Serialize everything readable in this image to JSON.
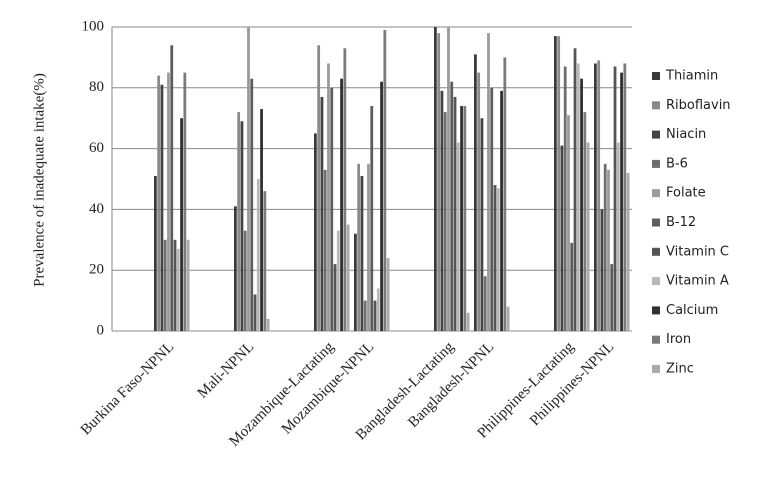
{
  "chart_data": {
    "type": "bar",
    "y_label": "Prevalence of inadequate intake(%)",
    "categories": [
      null,
      "Burkina Faso-NPNL",
      null,
      "Mali-NPNL",
      null,
      "Mozambique-Lactating",
      "Mozambique-NPNL",
      null,
      "Bangladesh-Lactating",
      "Bangladesh-NPNL",
      null,
      "Philippines-Lactating",
      "Philippines-NPNL"
    ],
    "series": [
      {
        "name": "Thiamin",
        "color": "#3a3a3a",
        "values": [
          null,
          51,
          null,
          41,
          null,
          65,
          32,
          null,
          100,
          91,
          null,
          97,
          88
        ]
      },
      {
        "name": "Riboflavin",
        "color": "#8a8a8a",
        "values": [
          null,
          84,
          null,
          72,
          null,
          94,
          55,
          null,
          98,
          85,
          null,
          97,
          89
        ]
      },
      {
        "name": "Niacin",
        "color": "#444444",
        "values": [
          null,
          81,
          null,
          69,
          null,
          77,
          51,
          null,
          79,
          70,
          null,
          61,
          40
        ]
      },
      {
        "name": "B-6",
        "color": "#6e6e6e",
        "values": [
          null,
          30,
          null,
          33,
          null,
          53,
          10,
          null,
          72,
          18,
          null,
          87,
          55
        ]
      },
      {
        "name": "Folate",
        "color": "#9a9a9a",
        "values": [
          null,
          85,
          null,
          100,
          null,
          88,
          55,
          null,
          100,
          98,
          null,
          71,
          53
        ]
      },
      {
        "name": "B-12",
        "color": "#5c5c5c",
        "values": [
          null,
          94,
          null,
          83,
          null,
          80,
          74,
          null,
          82,
          80,
          null,
          29,
          22
        ]
      },
      {
        "name": "Vitamin C",
        "color": "#555555",
        "values": [
          null,
          30,
          null,
          12,
          null,
          22,
          10,
          null,
          77,
          48,
          null,
          93,
          87
        ]
      },
      {
        "name": "Vitamin A",
        "color": "#b8b8b8",
        "values": [
          null,
          27,
          null,
          50,
          null,
          33,
          14,
          null,
          62,
          47,
          null,
          88,
          62
        ]
      },
      {
        "name": "Calcium",
        "color": "#303030",
        "values": [
          null,
          70,
          null,
          73,
          null,
          83,
          82,
          null,
          74,
          79,
          null,
          83,
          85
        ]
      },
      {
        "name": "Iron",
        "color": "#7a7a7a",
        "values": [
          null,
          85,
          null,
          46,
          null,
          93,
          99,
          null,
          74,
          90,
          null,
          72,
          88
        ]
      },
      {
        "name": "Zinc",
        "color": "#ababab",
        "values": [
          null,
          30,
          null,
          4,
          null,
          35,
          24,
          null,
          6,
          8,
          null,
          62,
          52
        ]
      }
    ],
    "ylim": [
      0,
      100
    ],
    "yticks": [
      0,
      20,
      40,
      60,
      80,
      100
    ],
    "grid": true
  }
}
